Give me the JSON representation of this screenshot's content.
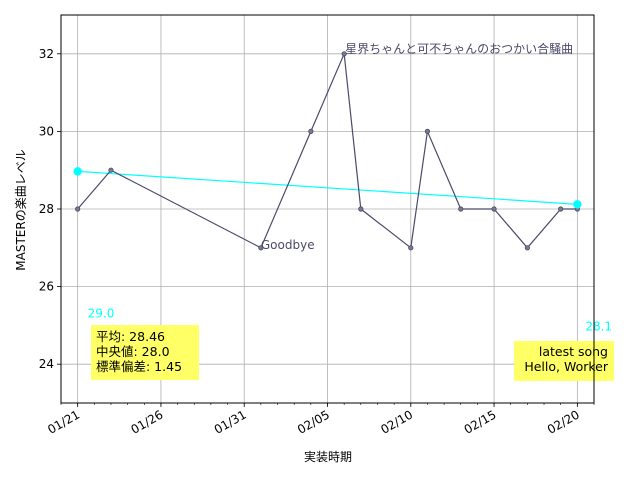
{
  "chart_data": {
    "type": "line",
    "xlabel": "実装時期",
    "ylabel": "MASTERの楽曲レベル",
    "x_axis": {
      "kind": "date",
      "range": [
        "2023-01-20",
        "2023-02-21"
      ],
      "ticks": [
        {
          "date": "2023-01-21",
          "label": "01/21"
        },
        {
          "date": "2023-01-26",
          "label": "01/26"
        },
        {
          "date": "2023-01-31",
          "label": "01/31"
        },
        {
          "date": "2023-02-05",
          "label": "02/05"
        },
        {
          "date": "2023-02-10",
          "label": "02/10"
        },
        {
          "date": "2023-02-15",
          "label": "02/15"
        },
        {
          "date": "2023-02-20",
          "label": "02/20"
        }
      ]
    },
    "y_axis": {
      "range": [
        23,
        33
      ],
      "ticks": [
        24,
        26,
        28,
        30,
        32
      ]
    },
    "grid": true,
    "series": [
      {
        "color": "#4a4a6a",
        "points": [
          {
            "date": "2023-01-21",
            "value": 28
          },
          {
            "date": "2023-01-23",
            "value": 29
          },
          {
            "date": "2023-02-01",
            "value": 27
          },
          {
            "date": "2023-02-04",
            "value": 30
          },
          {
            "date": "2023-02-06",
            "value": 32
          },
          {
            "date": "2023-02-07",
            "value": 28
          },
          {
            "date": "2023-02-10",
            "value": 27
          },
          {
            "date": "2023-02-11",
            "value": 30
          },
          {
            "date": "2023-02-13",
            "value": 28
          },
          {
            "date": "2023-02-15",
            "value": 28
          },
          {
            "date": "2023-02-17",
            "value": 27
          },
          {
            "date": "2023-02-19",
            "value": 28
          },
          {
            "date": "2023-02-20",
            "value": 28
          }
        ]
      },
      {
        "color": "#00ffff",
        "points": [
          {
            "date": "2023-01-21",
            "value": 28.97
          },
          {
            "date": "2023-02-20",
            "value": 28.12
          }
        ]
      }
    ],
    "annotations": [
      {
        "text": "星界ちゃんと可不ちゃんのおつかい合騒曲",
        "date": "2023-02-06",
        "value": 32
      },
      {
        "text": "Goodbye",
        "date": "2023-02-01",
        "value": 27
      },
      {
        "text": "29.0",
        "date": "2023-01-21",
        "value": 28.97
      },
      {
        "text": "28.1",
        "date": "2023-02-20",
        "value": 28.12
      }
    ],
    "stats_box": {
      "lines": [
        "平均: 28.46",
        "中央値: 28.0",
        "標準偏差:  1.45"
      ]
    },
    "latest_box": {
      "lines": [
        "latest song",
        "Hello, Worker"
      ]
    },
    "colors": {
      "line": "#4a4a6a",
      "trend": "#00ffff",
      "box": "#ffff66",
      "grid": "#b0b0b0",
      "annotation": "#4a4a6a"
    }
  }
}
